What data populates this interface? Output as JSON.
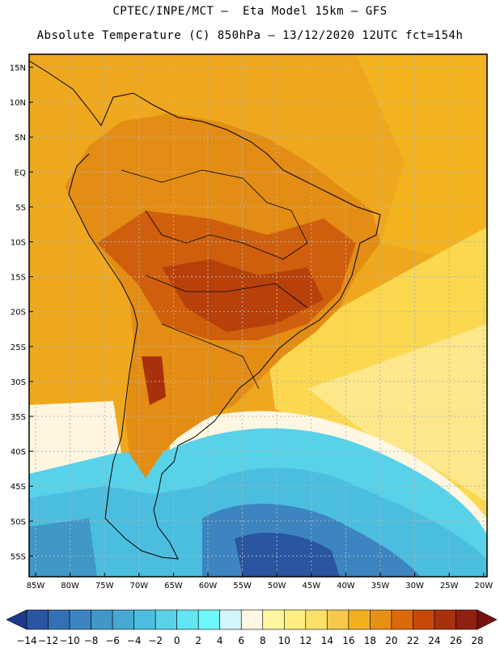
{
  "header": {
    "line1": "CPTEC/INPE/MCT –  Eta Model 15km – GFS",
    "line2": "Absolute Temperature (C) 850hPa – 13/12/2020 12UTC fct=154h"
  },
  "map": {
    "lat_labels": [
      "15N",
      "10N",
      "5N",
      "EQ",
      "5S",
      "10S",
      "15S",
      "20S",
      "25S",
      "30S",
      "35S",
      "40S",
      "45S",
      "50S",
      "55S"
    ],
    "lon_labels": [
      "85W",
      "80W",
      "75W",
      "70W",
      "65W",
      "60W",
      "55W",
      "50W",
      "45W",
      "40W",
      "35W",
      "30W",
      "25W",
      "20W"
    ]
  },
  "colorbar": {
    "labels": [
      "-14",
      "-12",
      "-10",
      "-8",
      "-6",
      "-4",
      "-2",
      "0",
      "2",
      "4",
      "6",
      "8",
      "10",
      "12",
      "14",
      "16",
      "18",
      "20",
      "22",
      "24",
      "26",
      "28"
    ],
    "colors": [
      "#1e3a8c",
      "#2a55a0",
      "#3370b4",
      "#3c85c0",
      "#3f98c8",
      "#46a9d4",
      "#4bbedf",
      "#58d2e8",
      "#62e6f2",
      "#6ef7fb",
      "#d2f6fb",
      "#fff7e2",
      "#fff7a0",
      "#ffee80",
      "#fbe06a",
      "#f6c94c",
      "#f2b01e",
      "#e89015",
      "#dc6a0a",
      "#c8480a",
      "#a8300c",
      "#902010",
      "#781010"
    ]
  }
}
